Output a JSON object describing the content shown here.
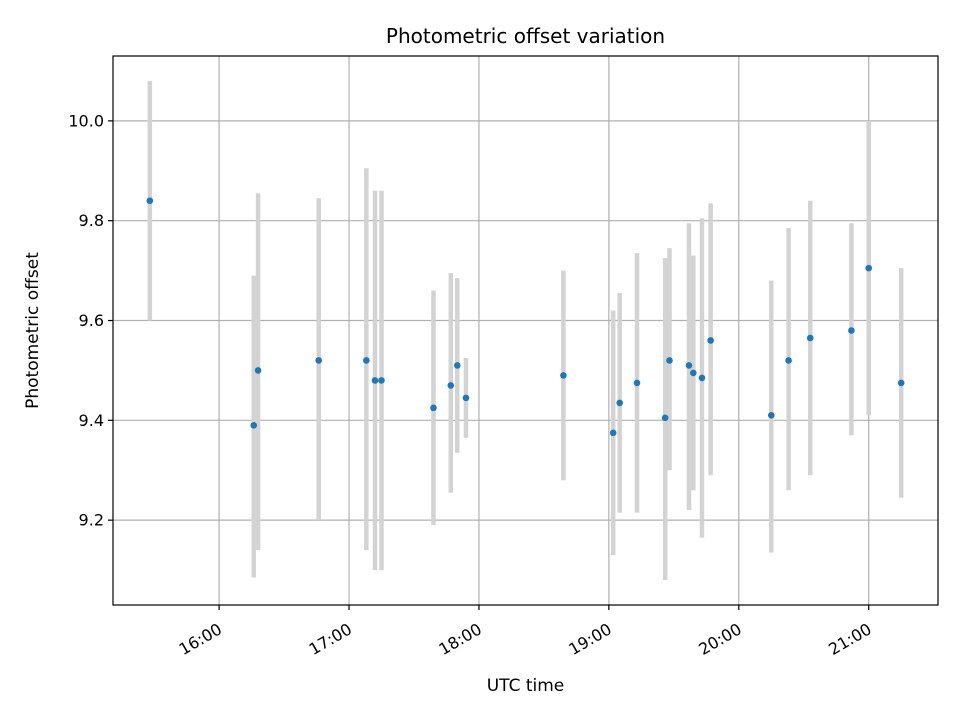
{
  "chart_data": {
    "type": "scatter",
    "title": "Photometric offset variation",
    "xlabel": "UTC time",
    "ylabel": "Photometric offset",
    "x_type": "time",
    "xlim": [
      "15:11",
      "21:32"
    ],
    "ylim": [
      9.03,
      10.13
    ],
    "x_ticks": [
      "16:00",
      "17:00",
      "18:00",
      "19:00",
      "20:00",
      "21:00"
    ],
    "y_ticks": [
      9.2,
      9.4,
      9.6,
      9.8,
      10.0
    ],
    "y_tick_labels": [
      "9.2",
      "9.4",
      "9.6",
      "9.8",
      "10.0"
    ],
    "grid": true,
    "marker_color": "#1f77b4",
    "errorbar_color": "#d3d3d3",
    "series": [
      {
        "points": [
          {
            "x": "15:28",
            "y": 9.84,
            "ylow": 9.6,
            "yhigh": 10.08
          },
          {
            "x": "16:16",
            "y": 9.39,
            "ylow": 9.085,
            "yhigh": 9.69
          },
          {
            "x": "16:18",
            "y": 9.5,
            "ylow": 9.14,
            "yhigh": 9.855
          },
          {
            "x": "16:46",
            "y": 9.52,
            "ylow": 9.2,
            "yhigh": 9.845
          },
          {
            "x": "17:08",
            "y": 9.52,
            "ylow": 9.14,
            "yhigh": 9.905
          },
          {
            "x": "17:12",
            "y": 9.48,
            "ylow": 9.1,
            "yhigh": 9.86
          },
          {
            "x": "17:15",
            "y": 9.48,
            "ylow": 9.1,
            "yhigh": 9.86
          },
          {
            "x": "17:39",
            "y": 9.425,
            "ylow": 9.19,
            "yhigh": 9.66
          },
          {
            "x": "17:47",
            "y": 9.47,
            "ylow": 9.255,
            "yhigh": 9.695
          },
          {
            "x": "17:50",
            "y": 9.51,
            "ylow": 9.335,
            "yhigh": 9.685
          },
          {
            "x": "17:54",
            "y": 9.445,
            "ylow": 9.365,
            "yhigh": 9.525
          },
          {
            "x": "18:39",
            "y": 9.49,
            "ylow": 9.28,
            "yhigh": 9.7
          },
          {
            "x": "19:02",
            "y": 9.375,
            "ylow": 9.13,
            "yhigh": 9.62
          },
          {
            "x": "19:05",
            "y": 9.435,
            "ylow": 9.215,
            "yhigh": 9.655
          },
          {
            "x": "19:13",
            "y": 9.475,
            "ylow": 9.215,
            "yhigh": 9.735
          },
          {
            "x": "19:26",
            "y": 9.405,
            "ylow": 9.08,
            "yhigh": 9.725
          },
          {
            "x": "19:28",
            "y": 9.52,
            "ylow": 9.3,
            "yhigh": 9.745
          },
          {
            "x": "19:37",
            "y": 9.51,
            "ylow": 9.22,
            "yhigh": 9.795
          },
          {
            "x": "19:39",
            "y": 9.495,
            "ylow": 9.26,
            "yhigh": 9.73
          },
          {
            "x": "19:43",
            "y": 9.485,
            "ylow": 9.165,
            "yhigh": 9.805
          },
          {
            "x": "19:47",
            "y": 9.56,
            "ylow": 9.29,
            "yhigh": 9.835
          },
          {
            "x": "20:15",
            "y": 9.41,
            "ylow": 9.135,
            "yhigh": 9.68
          },
          {
            "x": "20:23",
            "y": 9.52,
            "ylow": 9.26,
            "yhigh": 9.785
          },
          {
            "x": "20:33",
            "y": 9.565,
            "ylow": 9.29,
            "yhigh": 9.84
          },
          {
            "x": "20:52",
            "y": 9.58,
            "ylow": 9.37,
            "yhigh": 9.795
          },
          {
            "x": "21:00",
            "y": 9.705,
            "ylow": 9.41,
            "yhigh": 10.0
          },
          {
            "x": "21:15",
            "y": 9.475,
            "ylow": 9.245,
            "yhigh": 9.705
          }
        ]
      }
    ]
  }
}
